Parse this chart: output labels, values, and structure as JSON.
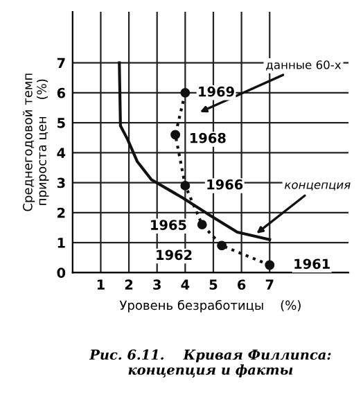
{
  "chart_data": {
    "type": "line",
    "xlabel": "Уровень безработицы    (%)",
    "ylabel": "Среднегодовой темп\nприроста цен    (%)",
    "xlim": [
      0,
      9.8
    ],
    "ylim": [
      0,
      8.7
    ],
    "xticks": [
      1,
      2,
      3,
      4,
      5,
      6,
      7
    ],
    "yticks": [
      0,
      1,
      2,
      3,
      4,
      5,
      6,
      7
    ],
    "grid": true,
    "legend": false,
    "series": [
      {
        "name": "концепция",
        "color": "#111111",
        "line_style": "solid",
        "marker": "none",
        "x": [
          1.66,
          1.7,
          1.95,
          2.3,
          2.8,
          3.9,
          4.9,
          5.85,
          7.0
        ],
        "values": [
          7,
          4.9,
          4.45,
          3.7,
          3.1,
          2.5,
          1.9,
          1.35,
          1.1
        ]
      },
      {
        "name": "данные 60-х",
        "color": "#111111",
        "line_style": "dotted",
        "marker": "circle",
        "x": [
          7.0,
          5.3,
          4.6,
          4.0,
          3.65,
          4.0
        ],
        "values": [
          0.25,
          0.9,
          1.6,
          2.9,
          4.6,
          6.0
        ]
      }
    ],
    "annotations": [
      {
        "text": "1969",
        "x": 5.1,
        "y": 6.0
      },
      {
        "text": "1968",
        "x": 4.8,
        "y": 4.45
      },
      {
        "text": "1966",
        "x": 5.4,
        "y": 2.9
      },
      {
        "text": "1965",
        "x": 3.4,
        "y": 1.55
      },
      {
        "text": "1962",
        "x": 3.6,
        "y": 0.55
      },
      {
        "text": "1961",
        "x": 8.5,
        "y": 0.25
      },
      "Рис. 6.11.    Кривая Филлипса:\nконцепция и факты"
    ]
  }
}
